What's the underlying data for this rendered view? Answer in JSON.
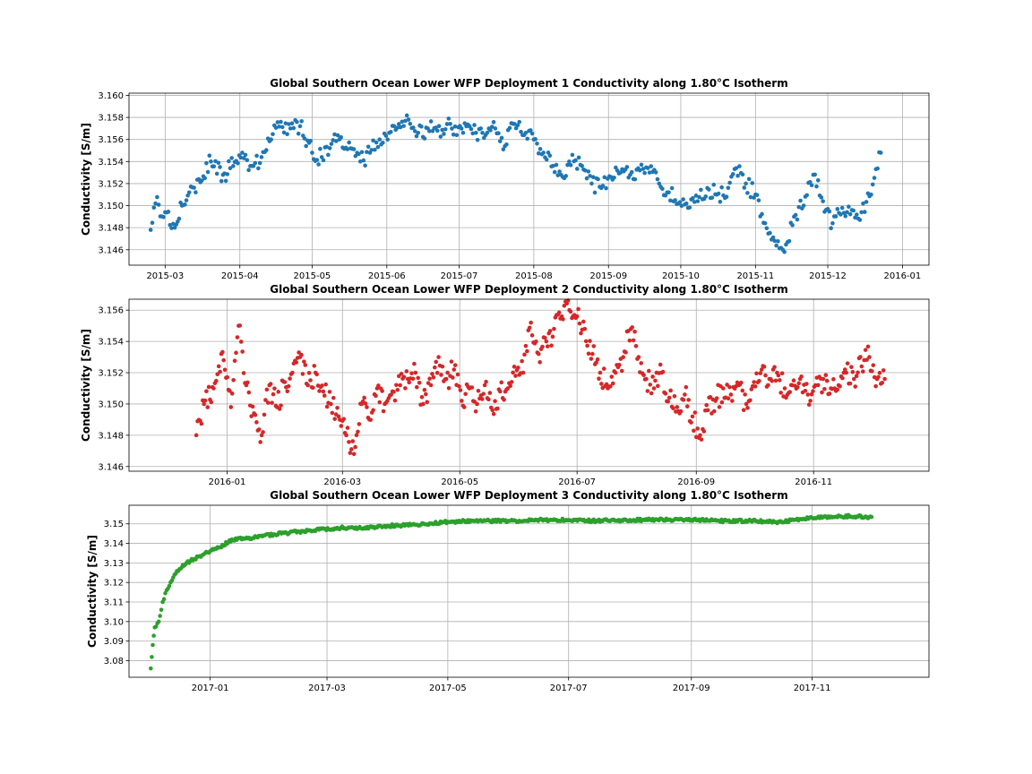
{
  "chart_data": [
    {
      "type": "scatter",
      "title": "Global Southern Ocean Lower WFP Deployment 1 Conductivity along 1.80°C Isotherm",
      "ylabel": "Conductivity [S/m]",
      "xlabel": "",
      "color": "#1f77b4",
      "grid": true,
      "xlim": [
        "2015-02-14",
        "2016-01-12"
      ],
      "ylim": [
        3.1446,
        3.1602
      ],
      "xticks": [
        "2015-03",
        "2015-04",
        "2015-05",
        "2015-06",
        "2015-07",
        "2015-08",
        "2015-09",
        "2015-10",
        "2015-11",
        "2015-12",
        "2016-01"
      ],
      "yticks": [
        "3.146",
        "3.148",
        "3.150",
        "3.152",
        "3.154",
        "3.156",
        "3.158",
        "3.160"
      ],
      "series": [
        {
          "x": [
            "2015-02-23",
            "2015-02-25",
            "2015-03-01",
            "2015-03-05",
            "2015-03-08",
            "2015-03-11",
            "2015-03-15",
            "2015-03-20",
            "2015-03-25",
            "2015-03-28",
            "2015-04-02",
            "2015-04-06",
            "2015-04-10",
            "2015-04-14",
            "2015-04-18",
            "2015-04-22",
            "2015-04-26",
            "2015-05-01",
            "2015-05-05",
            "2015-05-09",
            "2015-05-13",
            "2015-05-17",
            "2015-05-21",
            "2015-05-25",
            "2015-05-29",
            "2015-06-02",
            "2015-06-06",
            "2015-06-10",
            "2015-06-14",
            "2015-06-18",
            "2015-06-22",
            "2015-06-26",
            "2015-06-30",
            "2015-07-04",
            "2015-07-08",
            "2015-07-12",
            "2015-07-16",
            "2015-07-20",
            "2015-07-24",
            "2015-07-28",
            "2015-08-01",
            "2015-08-05",
            "2015-08-09",
            "2015-08-13",
            "2015-08-17",
            "2015-08-21",
            "2015-08-25",
            "2015-08-29",
            "2015-09-02",
            "2015-09-06",
            "2015-09-10",
            "2015-09-14",
            "2015-09-18",
            "2015-09-22",
            "2015-09-26",
            "2015-09-30",
            "2015-10-04",
            "2015-10-08",
            "2015-10-12",
            "2015-10-16",
            "2015-10-20",
            "2015-10-24",
            "2015-10-28",
            "2015-11-01",
            "2015-11-05",
            "2015-11-09",
            "2015-11-13",
            "2015-11-17",
            "2015-11-21",
            "2015-11-25",
            "2015-11-29",
            "2015-12-03",
            "2015-12-07",
            "2015-12-11",
            "2015-12-15",
            "2015-12-19",
            "2015-12-23"
          ],
          "y": [
            3.1478,
            3.1502,
            3.1494,
            3.148,
            3.15,
            3.1512,
            3.1524,
            3.154,
            3.1528,
            3.1534,
            3.1548,
            3.1536,
            3.1544,
            3.156,
            3.1576,
            3.157,
            3.1572,
            3.1548,
            3.1544,
            3.1556,
            3.1562,
            3.1552,
            3.154,
            3.1548,
            3.156,
            3.1566,
            3.1574,
            3.1578,
            3.1566,
            3.157,
            3.1568,
            3.1574,
            3.1564,
            3.1572,
            3.1566,
            3.1564,
            3.157,
            3.1554,
            3.1574,
            3.1564,
            3.156,
            3.1548,
            3.1536,
            3.1526,
            3.1546,
            3.1536,
            3.152,
            3.1516,
            3.1526,
            3.153,
            3.1528,
            3.1532,
            3.153,
            3.152,
            3.1512,
            3.1502,
            3.1498,
            3.1504,
            3.1516,
            3.151,
            3.1508,
            3.1534,
            3.152,
            3.151,
            3.1484,
            3.1468,
            3.1458,
            3.149,
            3.15,
            3.1528,
            3.1504,
            3.1484,
            3.1498,
            3.1496,
            3.1494,
            3.151,
            3.1548
          ]
        }
      ]
    },
    {
      "type": "scatter",
      "title": "Global Southern Ocean Lower WFP Deployment 2 Conductivity along 1.80°C Isotherm",
      "ylabel": "Conductivity [S/m]",
      "xlabel": "",
      "color": "#d62728",
      "grid": true,
      "xlim": [
        "2015-11-11",
        "2016-12-31"
      ],
      "ylim": [
        3.1457,
        3.1567
      ],
      "xticks": [
        "2016-01",
        "2016-03",
        "2016-05",
        "2016-07",
        "2016-09",
        "2016-11"
      ],
      "yticks": [
        "3.146",
        "3.148",
        "3.150",
        "3.152",
        "3.154",
        "3.156"
      ],
      "series": [
        {
          "x": [
            "2015-12-16",
            "2015-12-20",
            "2015-12-25",
            "2015-12-29",
            "2016-01-03",
            "2016-01-07",
            "2016-01-11",
            "2016-01-15",
            "2016-01-19",
            "2016-01-23",
            "2016-01-27",
            "2016-01-31",
            "2016-02-04",
            "2016-02-08",
            "2016-02-12",
            "2016-02-16",
            "2016-02-20",
            "2016-02-24",
            "2016-02-28",
            "2016-03-03",
            "2016-03-07",
            "2016-03-11",
            "2016-03-15",
            "2016-03-19",
            "2016-03-23",
            "2016-03-27",
            "2016-03-31",
            "2016-04-04",
            "2016-04-08",
            "2016-04-12",
            "2016-04-16",
            "2016-04-20",
            "2016-04-24",
            "2016-04-28",
            "2016-05-02",
            "2016-05-06",
            "2016-05-10",
            "2016-05-14",
            "2016-05-18",
            "2016-05-22",
            "2016-05-26",
            "2016-05-30",
            "2016-06-03",
            "2016-06-07",
            "2016-06-11",
            "2016-06-15",
            "2016-06-19",
            "2016-06-23",
            "2016-06-27",
            "2016-07-01",
            "2016-07-05",
            "2016-07-09",
            "2016-07-13",
            "2016-07-17",
            "2016-07-21",
            "2016-07-25",
            "2016-07-29",
            "2016-08-02",
            "2016-08-06",
            "2016-08-10",
            "2016-08-14",
            "2016-08-18",
            "2016-08-22",
            "2016-08-26",
            "2016-08-30",
            "2016-09-03",
            "2016-09-07",
            "2016-09-11",
            "2016-09-15",
            "2016-09-19",
            "2016-09-23",
            "2016-09-27",
            "2016-10-01",
            "2016-10-05",
            "2016-10-09",
            "2016-10-13",
            "2016-10-17",
            "2016-10-21",
            "2016-10-25",
            "2016-10-29",
            "2016-11-02",
            "2016-11-06",
            "2016-11-10",
            "2016-11-14",
            "2016-11-18",
            "2016-11-22",
            "2016-11-26",
            "2016-11-30",
            "2016-12-04",
            "2016-12-08"
          ],
          "y": [
            3.148,
            3.15,
            3.151,
            3.1532,
            3.1498,
            3.155,
            3.1512,
            3.1494,
            3.148,
            3.1512,
            3.1498,
            3.1514,
            3.152,
            3.153,
            3.1512,
            3.152,
            3.1508,
            3.15,
            3.1492,
            3.148,
            3.1468,
            3.15,
            3.149,
            3.151,
            3.15,
            3.1508,
            3.1512,
            3.1516,
            3.152,
            3.15,
            3.1512,
            3.153,
            3.1516,
            3.1522,
            3.1502,
            3.151,
            3.15,
            3.1512,
            3.1496,
            3.1508,
            3.151,
            3.1518,
            3.152,
            3.1552,
            3.1532,
            3.154,
            3.1548,
            3.1556,
            3.156,
            3.1556,
            3.1548,
            3.1532,
            3.152,
            3.151,
            3.152,
            3.153,
            3.1548,
            3.153,
            3.1516,
            3.151,
            3.152,
            3.1504,
            3.1498,
            3.1506,
            3.1492,
            3.148,
            3.1496,
            3.1502,
            3.151,
            3.1506,
            3.1512,
            3.15,
            3.1514,
            3.1522,
            3.1516,
            3.152,
            3.151,
            3.1512,
            3.1516,
            3.1506,
            3.1512,
            3.1516,
            3.151,
            3.1512,
            3.152,
            3.1516,
            3.1524,
            3.153,
            3.1516,
            3.1516
          ]
        }
      ]
    },
    {
      "type": "scatter",
      "title": "Global Southern Ocean Lower WFP Deployment 3 Conductivity along 1.80°C Isotherm",
      "ylabel": "Conductivity [S/m]",
      "xlabel": "",
      "color": "#2ca02c",
      "grid": true,
      "xlim": [
        "2016-11-21",
        "2017-12-30"
      ],
      "ylim": [
        3.0715,
        3.1595
      ],
      "xticks": [
        "2017-01",
        "2017-03",
        "2017-05",
        "2017-07",
        "2017-09",
        "2017-11"
      ],
      "yticks": [
        "3.08",
        "3.09",
        "3.10",
        "3.11",
        "3.12",
        "3.13",
        "3.14",
        "3.15"
      ],
      "series": [
        {
          "x": [
            "2016-12-02",
            "2016-12-03",
            "2016-12-04",
            "2016-12-06",
            "2016-12-08",
            "2016-12-10",
            "2016-12-12",
            "2016-12-14",
            "2016-12-17",
            "2016-12-20",
            "2016-12-24",
            "2016-12-28",
            "2017-01-01",
            "2017-01-06",
            "2017-01-12",
            "2017-01-20",
            "2017-01-28",
            "2017-02-06",
            "2017-02-15",
            "2017-02-25",
            "2017-03-08",
            "2017-03-20",
            "2017-04-01",
            "2017-04-15",
            "2017-05-01",
            "2017-05-15",
            "2017-06-01",
            "2017-06-15",
            "2017-07-01",
            "2017-07-15",
            "2017-08-01",
            "2017-08-15",
            "2017-09-01",
            "2017-09-15",
            "2017-10-01",
            "2017-10-15",
            "2017-11-01",
            "2017-11-15",
            "2017-12-01"
          ],
          "y": [
            3.076,
            3.088,
            3.097,
            3.1,
            3.11,
            3.116,
            3.12,
            3.124,
            3.127,
            3.13,
            3.132,
            3.134,
            3.136,
            3.138,
            3.142,
            3.1425,
            3.144,
            3.145,
            3.146,
            3.147,
            3.148,
            3.148,
            3.149,
            3.1495,
            3.151,
            3.1515,
            3.1515,
            3.152,
            3.152,
            3.1515,
            3.152,
            3.152,
            3.152,
            3.1515,
            3.1515,
            3.151,
            3.153,
            3.154,
            3.1535
          ]
        }
      ]
    }
  ]
}
